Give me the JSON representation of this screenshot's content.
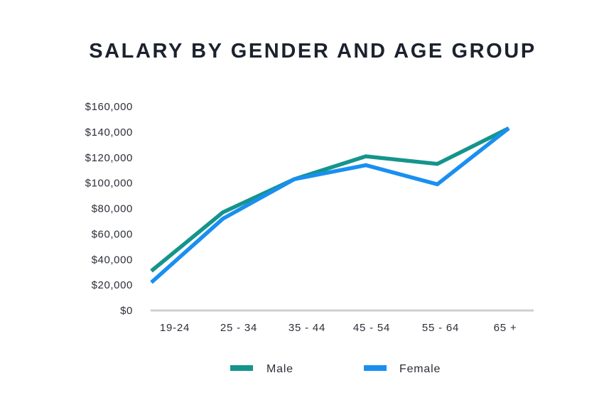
{
  "chart_data": {
    "type": "line",
    "title": "SALARY BY GENDER AND AGE GROUP",
    "xlabel": "",
    "ylabel": "",
    "categories": [
      "19-24",
      "25 - 34",
      "35 - 44",
      "45 - 54",
      "55 - 64",
      "65 +"
    ],
    "y_ticks": [
      "$0",
      "$20,000",
      "$40,000",
      "$60,000",
      "$80,000",
      "$100,000",
      "$120,000",
      "$140,000",
      "$160,000"
    ],
    "ylim": [
      0,
      160000
    ],
    "grid": false,
    "legend_position": "bottom",
    "series": [
      {
        "name": "Male",
        "color": "#14948c",
        "values": [
          31000,
          77000,
          103000,
          121000,
          115000,
          143000
        ]
      },
      {
        "name": "Female",
        "color": "#1a8ff0",
        "values": [
          22000,
          72000,
          103000,
          114000,
          99000,
          143000
        ]
      }
    ]
  }
}
